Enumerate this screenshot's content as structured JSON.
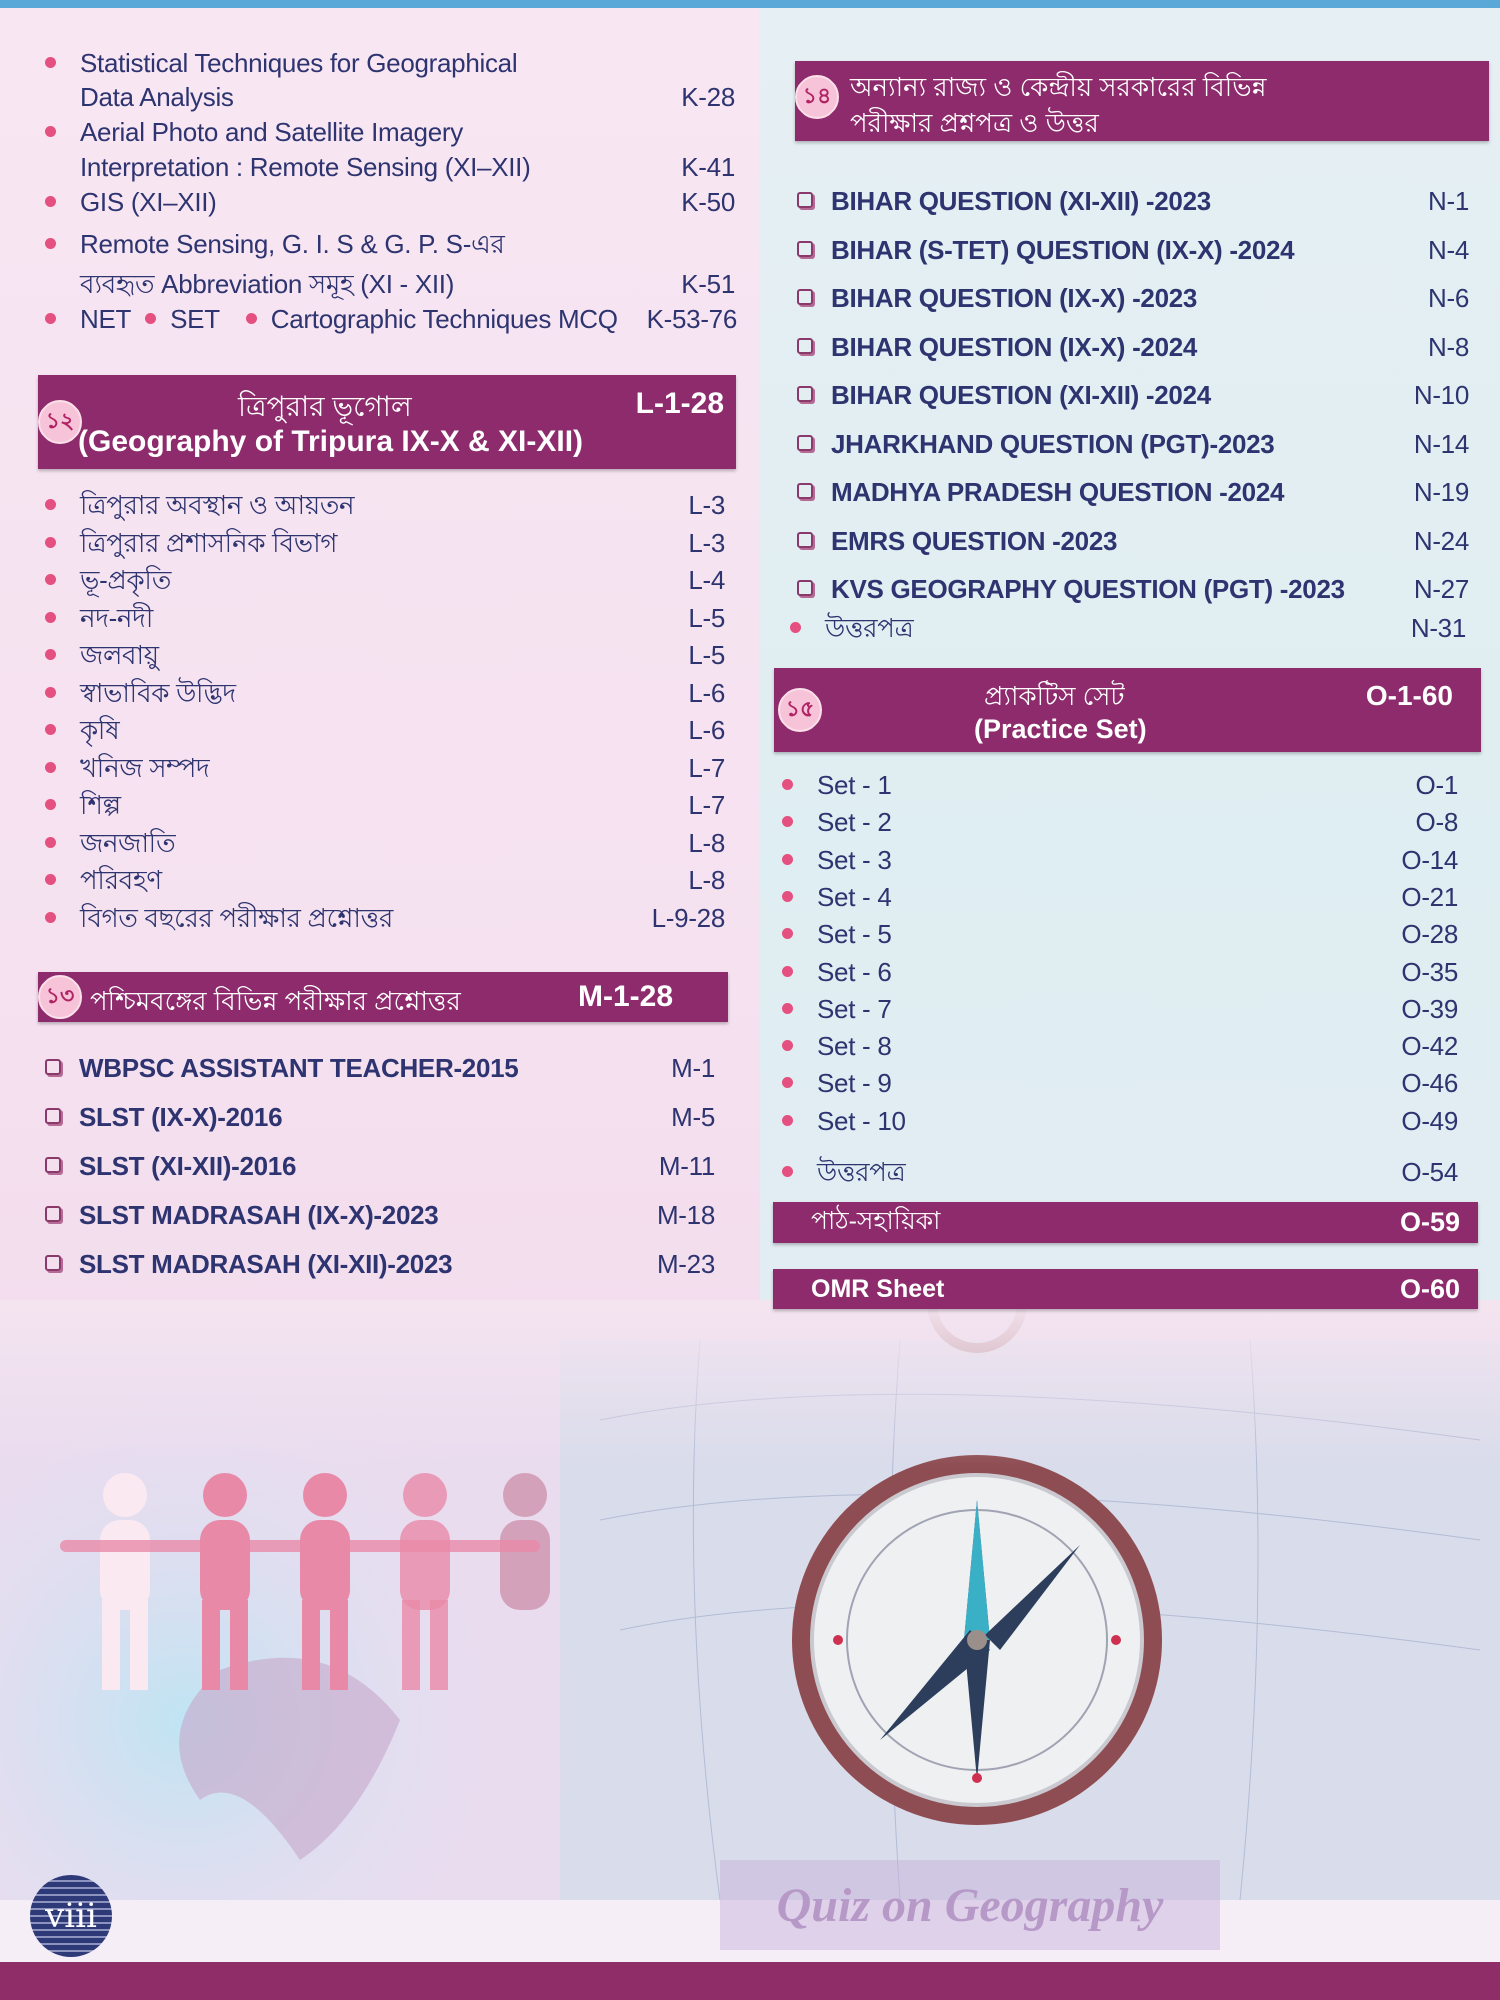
{
  "colors": {
    "header_bg": "#8d2b6c",
    "text": "#2d3470",
    "bullet": "#e4507f",
    "left_bg": "#f8e6f3",
    "right_bg": "#e0eef2"
  },
  "section_k": {
    "items": [
      {
        "label": "Statistical Techniques for Geographical",
        "label2": "Data Analysis",
        "page": "K-28"
      },
      {
        "label": "Aerial Photo and Satellite Imagery",
        "label2": "Interpretation : Remote Sensing (XI–XII)",
        "page": "K-41"
      },
      {
        "label": "GIS (XI–XII)",
        "page": "K-50"
      },
      {
        "label": "Remote Sensing, G. I. S & G. P. S-এর",
        "label2": "ব্যবহৃত Abbreviation সমূহ (XI - XII)",
        "page": "K-51"
      }
    ],
    "last_row": {
      "a": "NET",
      "b": "SET",
      "c": "Cartographic Techniques  MCQ",
      "page": "K-53-76"
    }
  },
  "section_12": {
    "badge": "১২",
    "title_bn": "ত্রিপুরার ভূগোল",
    "title_en": "(Geography of Tripura IX-X & XI-XII)",
    "pages": "L-1-28",
    "items": [
      {
        "label": "ত্রিপুরার অবস্থান ও আয়তন",
        "page": "L-3"
      },
      {
        "label": "ত্রিপুরার প্রশাসনিক বিভাগ",
        "page": "L-3"
      },
      {
        "label": "ভূ-প্রকৃতি",
        "page": "L-4"
      },
      {
        "label": "নদ-নদী",
        "page": "L-5"
      },
      {
        "label": "জলবায়ু",
        "page": "L-5"
      },
      {
        "label": "স্বাভাবিক উদ্ভিদ",
        "page": "L-6"
      },
      {
        "label": "কৃষি",
        "page": "L-6"
      },
      {
        "label": "খনিজ সম্পদ",
        "page": "L-7"
      },
      {
        "label": "শিল্প",
        "page": "L-7"
      },
      {
        "label": "জনজাতি",
        "page": "L-8"
      },
      {
        "label": "পরিবহণ",
        "page": "L-8"
      },
      {
        "label": "বিগত বছরের পরীক্ষার প্রশ্নোত্তর",
        "page": "L-9-28"
      }
    ]
  },
  "section_13": {
    "badge": "১৩",
    "title": "পশ্চিমবঙ্গের বিভিন্ন পরীক্ষার প্রশ্নোত্তর",
    "pages": "M-1-28",
    "items": [
      {
        "label": "WBPSC ASSISTANT TEACHER-2015",
        "page": "M-1"
      },
      {
        "label": "SLST (IX-X)-2016",
        "page": "M-5"
      },
      {
        "label": "SLST (XI-XII)-2016",
        "page": "M-11"
      },
      {
        "label": "SLST MADRASAH (IX-X)-2023",
        "page": "M-18"
      },
      {
        "label": "SLST MADRASAH (XI-XII)-2023",
        "page": "M-23"
      }
    ]
  },
  "section_14": {
    "badge": "১৪",
    "title_line1": "অন্যান্য রাজ্য ও কেন্দ্রীয় সরকারের বিভিন্ন",
    "title_line2": "পরীক্ষার প্রশ্নপত্র ও উত্তর",
    "items": [
      {
        "label": "BIHAR QUESTION (XI-XII) -2023",
        "page": "N-1"
      },
      {
        "label": "BIHAR (S-TET) QUESTION (IX-X) -2024",
        "page": "N-4"
      },
      {
        "label": "BIHAR QUESTION (IX-X) -2023",
        "page": "N-6"
      },
      {
        "label": "BIHAR QUESTION (IX-X) -2024",
        "page": "N-8"
      },
      {
        "label": "BIHAR QUESTION (XI-XII) -2024",
        "page": "N-10"
      },
      {
        "label": "JHARKHAND QUESTION (PGT)-2023",
        "page": "N-14"
      },
      {
        "label": "MADHYA PRADESH QUESTION -2024",
        "page": "N-19"
      },
      {
        "label": "EMRS QUESTION -2023",
        "page": "N-24"
      },
      {
        "label": "KVS GEOGRAPHY QUESTION (PGT) -2023",
        "page": "N-27"
      }
    ],
    "answer": {
      "label": "উত্তরপত্র",
      "page": "N-31"
    }
  },
  "section_15": {
    "badge": "১৫",
    "title_bn": "প্র্যাকটিস সেট",
    "title_en": "(Practice Set)",
    "pages": "O-1-60",
    "items": [
      {
        "label": "Set - 1",
        "page": "O-1"
      },
      {
        "label": "Set - 2",
        "page": "O-8"
      },
      {
        "label": "Set - 3",
        "page": "O-14"
      },
      {
        "label": "Set - 4",
        "page": "O-21"
      },
      {
        "label": "Set - 5",
        "page": "O-28"
      },
      {
        "label": "Set - 6",
        "page": "O-35"
      },
      {
        "label": "Set - 7",
        "page": "O-39"
      },
      {
        "label": "Set - 8",
        "page": "O-42"
      },
      {
        "label": "Set - 9",
        "page": "O-46"
      },
      {
        "label": "Set - 10",
        "page": "O-49"
      }
    ],
    "answer": {
      "label": "উত্তরপত্র",
      "page": "O-54"
    }
  },
  "study_aid": {
    "label": "পাঠ-সহায়িকা",
    "page": "O-59"
  },
  "omr": {
    "label": "OMR Sheet",
    "page": "O-60"
  },
  "footer": {
    "page_number": "viii",
    "watermark": "Quiz on Geography"
  }
}
